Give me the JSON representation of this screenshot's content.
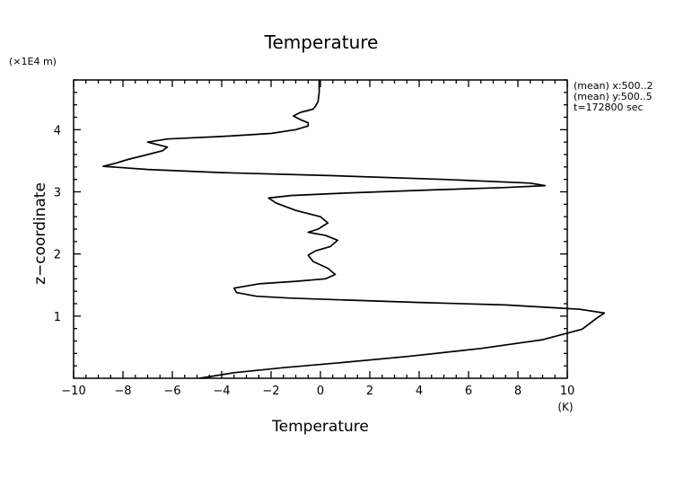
{
  "chart_data": {
    "type": "line",
    "title": "Temperature",
    "xlabel": "Temperature",
    "x_unit": "(K)",
    "ylabel": "z−coordinate",
    "y_unit": "(×1E4 m)",
    "xlim": [
      -10,
      10
    ],
    "ylim": [
      0,
      4.8
    ],
    "xticks": [
      -10,
      -8,
      -6,
      -4,
      -2,
      0,
      2,
      4,
      6,
      8,
      10
    ],
    "xtick_labels": [
      "−10",
      "−8",
      "−6",
      "−4",
      "−2",
      "0",
      "2",
      "4",
      "6",
      "8",
      "10"
    ],
    "yticks": [
      1,
      2,
      3,
      4
    ],
    "ytick_labels": [
      "1",
      "2",
      "3",
      "4"
    ],
    "grid": false,
    "legend": "none",
    "annotations": [
      "(mean) x:500..2",
      "(mean) y:500..5",
      "t=172800 sec"
    ],
    "series": [
      {
        "color": "#000000",
        "points": [
          [
            -4.9,
            0.0
          ],
          [
            -3.5,
            0.09
          ],
          [
            -1.5,
            0.17
          ],
          [
            0.8,
            0.25
          ],
          [
            3.5,
            0.35
          ],
          [
            6.5,
            0.48
          ],
          [
            9.0,
            0.62
          ],
          [
            10.6,
            0.79
          ],
          [
            11.2,
            0.97
          ],
          [
            11.5,
            1.05
          ],
          [
            10.5,
            1.11
          ],
          [
            7.5,
            1.18
          ],
          [
            4.0,
            1.22
          ],
          [
            1.0,
            1.26
          ],
          [
            -1.2,
            1.29
          ],
          [
            -2.6,
            1.32
          ],
          [
            -3.4,
            1.38
          ],
          [
            -3.5,
            1.45
          ],
          [
            -2.5,
            1.52
          ],
          [
            -1.0,
            1.56
          ],
          [
            0.2,
            1.6
          ],
          [
            0.6,
            1.67
          ],
          [
            0.3,
            1.77
          ],
          [
            -0.3,
            1.88
          ],
          [
            -0.5,
            1.98
          ],
          [
            -0.2,
            2.05
          ],
          [
            0.4,
            2.12
          ],
          [
            0.7,
            2.22
          ],
          [
            0.2,
            2.3
          ],
          [
            -0.5,
            2.35
          ],
          [
            -0.1,
            2.4
          ],
          [
            0.3,
            2.5
          ],
          [
            0.0,
            2.6
          ],
          [
            -1.0,
            2.7
          ],
          [
            -1.8,
            2.82
          ],
          [
            -2.1,
            2.9
          ],
          [
            -1.2,
            2.94
          ],
          [
            1.0,
            2.98
          ],
          [
            4.5,
            3.03
          ],
          [
            7.5,
            3.07
          ],
          [
            9.1,
            3.1
          ],
          [
            8.5,
            3.14
          ],
          [
            5.0,
            3.2
          ],
          [
            0.5,
            3.26
          ],
          [
            -4.0,
            3.31
          ],
          [
            -7.0,
            3.36
          ],
          [
            -8.8,
            3.41
          ],
          [
            -8.3,
            3.46
          ],
          [
            -7.8,
            3.52
          ],
          [
            -7.0,
            3.6
          ],
          [
            -6.4,
            3.66
          ],
          [
            -6.2,
            3.72
          ],
          [
            -6.6,
            3.76
          ],
          [
            -7.0,
            3.8
          ],
          [
            -6.2,
            3.85
          ],
          [
            -4.0,
            3.89
          ],
          [
            -2.0,
            3.94
          ],
          [
            -1.0,
            4.0
          ],
          [
            -0.5,
            4.06
          ],
          [
            -0.5,
            4.11
          ],
          [
            -0.8,
            4.16
          ],
          [
            -1.1,
            4.22
          ],
          [
            -0.8,
            4.28
          ],
          [
            -0.3,
            4.33
          ],
          [
            -0.2,
            4.38
          ],
          [
            -0.1,
            4.45
          ],
          [
            -0.05,
            4.6
          ],
          [
            -0.05,
            4.8
          ]
        ]
      }
    ]
  }
}
